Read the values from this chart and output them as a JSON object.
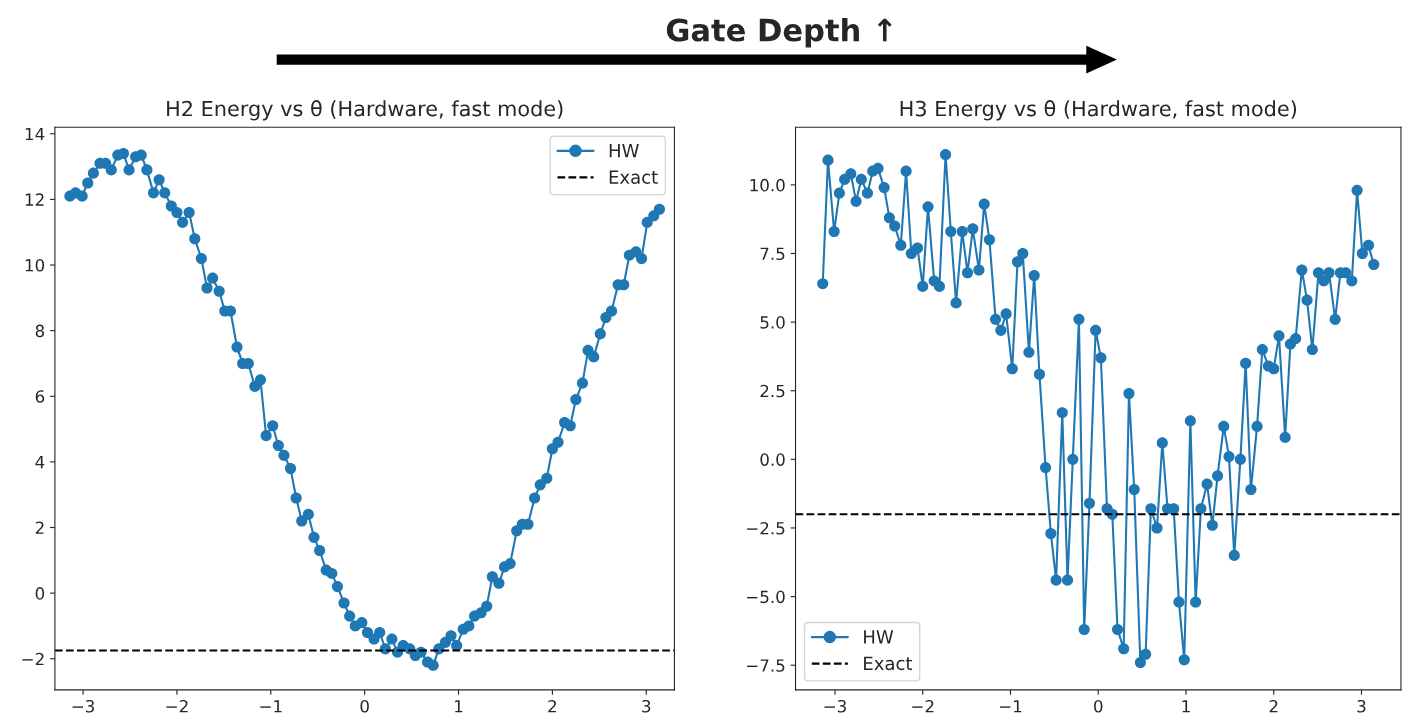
{
  "chart_data": [
    {
      "type": "line",
      "title": "H2 Energy vs θ (Hardware, fast mode)",
      "annotations": [
        "Gate Depth ↑"
      ],
      "x": [
        -3.14,
        -3.08,
        -3.01,
        -2.95,
        -2.89,
        -2.82,
        -2.76,
        -2.7,
        -2.63,
        -2.57,
        -2.51,
        -2.44,
        -2.38,
        -2.32,
        -2.25,
        -2.19,
        -2.13,
        -2.06,
        -2.0,
        -1.94,
        -1.87,
        -1.81,
        -1.74,
        -1.68,
        -1.62,
        -1.55,
        -1.49,
        -1.43,
        -1.36,
        -1.3,
        -1.24,
        -1.17,
        -1.11,
        -1.05,
        -0.98,
        -0.92,
        -0.86,
        -0.79,
        -0.73,
        -0.67,
        -0.6,
        -0.54,
        -0.48,
        -0.41,
        -0.35,
        -0.29,
        -0.22,
        -0.16,
        -0.1,
        -0.03,
        0.03,
        0.1,
        0.16,
        0.22,
        0.29,
        0.35,
        0.41,
        0.48,
        0.54,
        0.6,
        0.67,
        0.73,
        0.79,
        0.86,
        0.92,
        0.98,
        1.05,
        1.11,
        1.17,
        1.24,
        1.3,
        1.36,
        1.43,
        1.49,
        1.55,
        1.62,
        1.68,
        1.74,
        1.81,
        1.87,
        1.94,
        2.0,
        2.06,
        2.13,
        2.19,
        2.25,
        2.32,
        2.38,
        2.44,
        2.51,
        2.57,
        2.63,
        2.7,
        2.76,
        2.82,
        2.89,
        2.95,
        3.01,
        3.08,
        3.14
      ],
      "series": [
        {
          "name": "HW",
          "color": "#1f77b4",
          "values": [
            12.1,
            12.2,
            12.1,
            12.5,
            12.8,
            13.1,
            13.1,
            12.9,
            13.35,
            13.4,
            12.9,
            13.3,
            13.35,
            12.9,
            12.2,
            12.6,
            12.2,
            11.8,
            11.6,
            11.3,
            11.6,
            10.8,
            10.2,
            9.3,
            9.6,
            9.2,
            8.6,
            8.6,
            7.5,
            7.0,
            7.0,
            6.3,
            6.5,
            4.8,
            5.1,
            4.5,
            4.2,
            3.8,
            2.9,
            2.2,
            2.4,
            1.7,
            1.3,
            0.7,
            0.6,
            0.2,
            -0.3,
            -0.7,
            -1.0,
            -0.9,
            -1.2,
            -1.4,
            -1.2,
            -1.7,
            -1.4,
            -1.8,
            -1.6,
            -1.7,
            -1.9,
            -1.8,
            -2.1,
            -2.2,
            -1.7,
            -1.5,
            -1.3,
            -1.6,
            -1.1,
            -1.0,
            -0.7,
            -0.6,
            -0.4,
            0.5,
            0.3,
            0.8,
            0.9,
            1.9,
            2.1,
            2.1,
            2.9,
            3.3,
            3.5,
            4.4,
            4.6,
            5.2,
            5.1,
            5.9,
            6.4,
            7.4,
            7.2,
            7.9,
            8.4,
            8.6,
            9.4,
            9.4,
            10.3,
            10.4,
            10.2,
            11.3,
            11.5,
            11.7
          ]
        }
      ],
      "ref_lines": [
        {
          "axis": "y",
          "value": -1.75,
          "label": "Exact",
          "color": "#000000",
          "line_style": "dashed"
        }
      ],
      "marker": "circle",
      "legend": "top right",
      "grid": false,
      "xlim": [
        -3.3,
        3.3
      ],
      "ylim": [
        -2.95,
        14.2
      ],
      "xticks": [
        {
          "value": -3,
          "label": "−3"
        },
        {
          "value": -2,
          "label": "−2"
        },
        {
          "value": -1,
          "label": "−1"
        },
        0,
        1,
        2,
        3
      ],
      "yticks": [
        {
          "value": -2,
          "label": "−2"
        },
        0,
        2,
        4,
        6,
        8,
        10,
        12,
        14
      ]
    },
    {
      "type": "line",
      "title": "H3 Energy vs θ (Hardware, fast mode)",
      "x": [
        -3.14,
        -3.08,
        -3.01,
        -2.95,
        -2.89,
        -2.82,
        -2.76,
        -2.7,
        -2.63,
        -2.57,
        -2.51,
        -2.44,
        -2.38,
        -2.32,
        -2.25,
        -2.19,
        -2.13,
        -2.06,
        -2.0,
        -1.94,
        -1.87,
        -1.81,
        -1.74,
        -1.68,
        -1.62,
        -1.55,
        -1.49,
        -1.43,
        -1.36,
        -1.3,
        -1.24,
        -1.17,
        -1.11,
        -1.05,
        -0.98,
        -0.92,
        -0.86,
        -0.79,
        -0.73,
        -0.67,
        -0.6,
        -0.54,
        -0.48,
        -0.41,
        -0.35,
        -0.29,
        -0.22,
        -0.16,
        -0.1,
        -0.03,
        0.03,
        0.1,
        0.16,
        0.22,
        0.29,
        0.35,
        0.41,
        0.48,
        0.54,
        0.6,
        0.67,
        0.73,
        0.79,
        0.86,
        0.92,
        0.98,
        1.05,
        1.11,
        1.17,
        1.24,
        1.3,
        1.36,
        1.43,
        1.49,
        1.55,
        1.62,
        1.68,
        1.74,
        1.81,
        1.87,
        1.94,
        2.0,
        2.06,
        2.13,
        2.19,
        2.25,
        2.32,
        2.38,
        2.44,
        2.51,
        2.57,
        2.63,
        2.7,
        2.76,
        2.82,
        2.89,
        2.95,
        3.01,
        3.08,
        3.14
      ],
      "series": [
        {
          "name": "HW",
          "color": "#1f77b4",
          "values": [
            6.4,
            10.9,
            8.3,
            9.7,
            10.2,
            10.4,
            9.4,
            10.2,
            9.7,
            10.5,
            10.6,
            9.9,
            8.8,
            8.5,
            7.8,
            10.5,
            7.5,
            7.7,
            6.3,
            9.2,
            6.5,
            6.3,
            11.1,
            8.3,
            5.7,
            8.3,
            6.8,
            8.4,
            6.9,
            9.3,
            8.0,
            5.1,
            4.7,
            5.3,
            3.3,
            7.2,
            7.5,
            3.9,
            6.7,
            3.1,
            -0.3,
            -2.7,
            -4.4,
            1.7,
            -4.4,
            0.0,
            5.1,
            -6.2,
            -1.6,
            4.7,
            3.7,
            -1.8,
            -2.0,
            -6.2,
            -6.9,
            2.4,
            -1.1,
            -7.4,
            -7.1,
            -1.8,
            -2.5,
            0.6,
            -1.8,
            -1.8,
            -5.2,
            -7.3,
            1.4,
            -5.2,
            -1.8,
            -0.9,
            -2.4,
            -0.6,
            1.2,
            0.1,
            -3.5,
            0.0,
            3.5,
            -1.1,
            1.2,
            4.0,
            3.4,
            3.3,
            4.5,
            0.8,
            4.2,
            4.4,
            6.9,
            5.8,
            4.0,
            6.8,
            6.5,
            6.8,
            5.1,
            6.8,
            6.8,
            6.5,
            9.8,
            7.5,
            7.8,
            7.1
          ]
        }
      ],
      "ref_lines": [
        {
          "axis": "y",
          "value": -2.0,
          "label": "Exact",
          "color": "#000000",
          "line_style": "dashed"
        }
      ],
      "marker": "circle",
      "legend": "bottom left",
      "grid": false,
      "xlim": [
        -3.45,
        3.45
      ],
      "ylim": [
        -8.4,
        12.1
      ],
      "xticks": [
        {
          "value": -3,
          "label": "−3"
        },
        {
          "value": -2,
          "label": "−2"
        },
        {
          "value": -1,
          "label": "−1"
        },
        0,
        1,
        2,
        3
      ],
      "yticks": [
        {
          "value": -7.5,
          "label": "−7.5"
        },
        {
          "value": -5,
          "label": "−5.0"
        },
        {
          "value": -2.5,
          "label": "−2.5"
        },
        {
          "value": 0,
          "label": "0.0"
        },
        {
          "value": 2.5,
          "label": "2.5"
        },
        {
          "value": 5,
          "label": "5.0"
        },
        {
          "value": 7.5,
          "label": "7.5"
        },
        {
          "value": 10,
          "label": "10.0"
        }
      ]
    }
  ]
}
